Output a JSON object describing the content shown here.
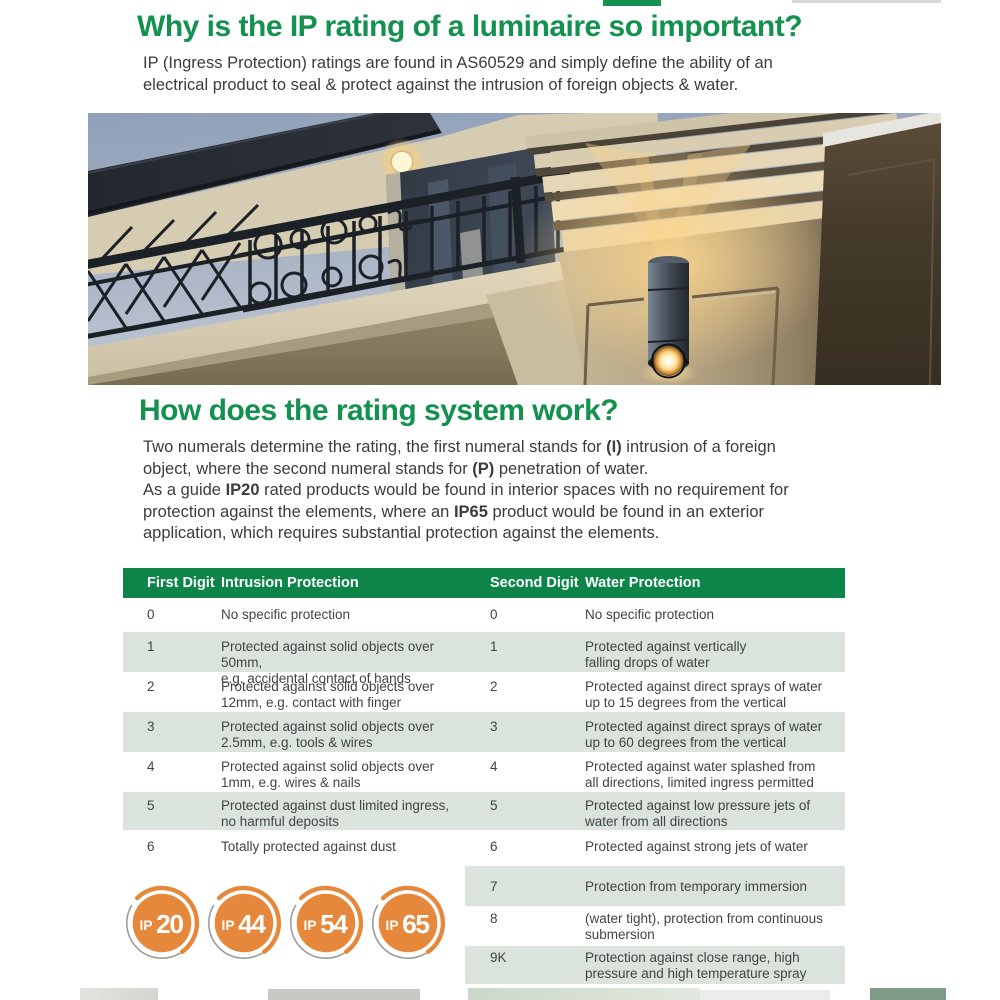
{
  "page": {
    "heading1": "Why is the IP rating of a luminaire so important?",
    "para1": "IP (Ingress Protection) ratings are found in AS60529 and simply define the ability of an\nelectrical product to seal & protect against the intrusion of foreign objects & water.",
    "heading2": "How does the rating system work?",
    "para2_segments": [
      {
        "t": "Two numerals determine the rating, the first numeral stands for "
      },
      {
        "t": "(I)",
        "b": true
      },
      {
        "t": " intrusion of a foreign\nobject, where the second numeral stands for "
      },
      {
        "t": "(P)",
        "b": true
      },
      {
        "t": " penetration of water.\nAs a guide "
      },
      {
        "t": "IP20",
        "b": true
      },
      {
        "t": " rated products would be found in interior spaces with no requirement for\nprotection against the elements, where an "
      },
      {
        "t": "IP65",
        "b": true
      },
      {
        "t": " product would be found in an exterior\napplication, which requires substantial protection against the elements."
      }
    ]
  },
  "photo": {
    "description": "Dusk photo of a rendered building exterior: black wrought-iron balcony railing at left with recessed soffit downlight, and a cylindrical up/down wall light glowing warm on a stone column at right"
  },
  "table": {
    "headers": [
      "First Digit",
      "Intrusion Protection",
      "Second Digit",
      "Water Protection"
    ],
    "rows": [
      {
        "d1": "0",
        "p1": "No specific protection",
        "d2": "0",
        "p2": "No specific protection"
      },
      {
        "d1": "1",
        "p1": "Protected against solid objects over 50mm,\ne.g. accidental contact of hands",
        "d2": "1",
        "p2": "Protected against vertically\nfalling drops of water"
      },
      {
        "d1": "2",
        "p1": "Protected against solid objects over\n12mm, e.g. contact with finger",
        "d2": "2",
        "p2": "Protected against direct sprays of water\nup to 15 degrees from the vertical"
      },
      {
        "d1": "3",
        "p1": "Protected against solid objects over\n2.5mm, e.g. tools & wires",
        "d2": "3",
        "p2": "Protected against direct sprays of water\nup to 60 degrees from the vertical"
      },
      {
        "d1": "4",
        "p1": "Protected against solid objects over\n1mm, e.g. wires & nails",
        "d2": "4",
        "p2": "Protected against water splashed from\nall directions, limited ingress permitted"
      },
      {
        "d1": "5",
        "p1": "Protected against dust limited ingress,\nno harmful deposits",
        "d2": "5",
        "p2": "Protected against low pressure jets of\nwater from all directions"
      },
      {
        "d1": "6",
        "p1": "Totally protected against dust",
        "d2": "6",
        "p2": "Protected against strong jets of water"
      }
    ],
    "extra_rows": [
      {
        "d": "7",
        "p": "Protection from temporary immersion"
      },
      {
        "d": "8",
        "p": "(water tight), protection from continuous\nsubmersion"
      },
      {
        "d": "9K",
        "p": "Protection against close range, high\npressure and high temperature spray"
      }
    ]
  },
  "badges": [
    {
      "label": "IP20",
      "prefix": "IP",
      "digits": "20"
    },
    {
      "label": "IP44",
      "prefix": "IP",
      "digits": "44"
    },
    {
      "label": "IP54",
      "prefix": "IP",
      "digits": "54"
    },
    {
      "label": "IP65",
      "prefix": "IP",
      "digits": "65"
    }
  ],
  "colors": {
    "brand_green": "#12914f",
    "table_header_green": "#0d8549",
    "row_shade": "#dbe4dc",
    "badge_orange": "#e6883c",
    "body_text": "#3c3c3c"
  }
}
